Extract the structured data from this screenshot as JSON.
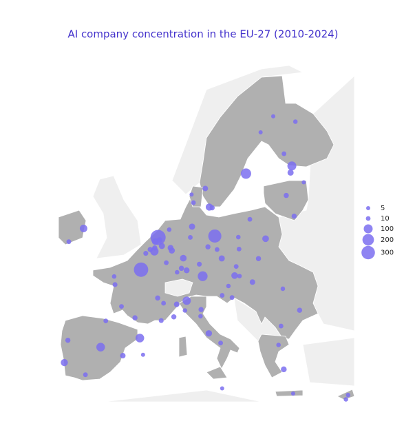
{
  "chart_data": {
    "type": "bubble-map",
    "title": "AI company concentration in the EU-27 (2010-2024)",
    "color": "#7b6ff0",
    "size_legend": [
      5,
      10,
      100,
      200,
      300
    ],
    "points": [
      {
        "lon": 4.9,
        "lat": 52.37,
        "value": 400
      },
      {
        "lon": 2.35,
        "lat": 48.85,
        "value": 350
      },
      {
        "lon": 13.4,
        "lat": 52.52,
        "value": 280
      },
      {
        "lon": 18.07,
        "lat": 59.33,
        "value": 150
      },
      {
        "lon": 11.58,
        "lat": 48.14,
        "value": 130
      },
      {
        "lon": 24.94,
        "lat": 60.17,
        "value": 100
      },
      {
        "lon": -3.7,
        "lat": 40.4,
        "value": 90
      },
      {
        "lon": 2.17,
        "lat": 41.39,
        "value": 90
      },
      {
        "lon": -9.14,
        "lat": 38.72,
        "value": 50
      },
      {
        "lon": 9.19,
        "lat": 45.46,
        "value": 80
      },
      {
        "lon": -6.26,
        "lat": 53.35,
        "value": 60
      },
      {
        "lon": 12.57,
        "lat": 55.68,
        "value": 50
      },
      {
        "lon": 4.35,
        "lat": 50.85,
        "value": 80
      },
      {
        "lon": 21.01,
        "lat": 52.23,
        "value": 40
      },
      {
        "lon": 14.44,
        "lat": 50.08,
        "value": 30
      },
      {
        "lon": 16.37,
        "lat": 48.21,
        "value": 40
      },
      {
        "lon": 24.75,
        "lat": 59.44,
        "value": 30
      },
      {
        "lon": 24.1,
        "lat": 56.95,
        "value": 15
      },
      {
        "lon": 25.28,
        "lat": 54.69,
        "value": 15
      },
      {
        "lon": 19.04,
        "lat": 47.5,
        "value": 20
      },
      {
        "lon": 26.1,
        "lat": 44.43,
        "value": 15
      },
      {
        "lon": 23.32,
        "lat": 42.7,
        "value": 10
      },
      {
        "lon": 23.73,
        "lat": 37.98,
        "value": 25
      },
      {
        "lon": 12.5,
        "lat": 41.9,
        "value": 35
      },
      {
        "lon": 9.99,
        "lat": 53.55,
        "value": 30
      },
      {
        "lon": 8.68,
        "lat": 50.11,
        "value": 40
      },
      {
        "lon": 6.96,
        "lat": 50.94,
        "value": 30
      },
      {
        "lon": 9.18,
        "lat": 48.78,
        "value": 25
      },
      {
        "lon": 4.84,
        "lat": 45.76,
        "value": 15
      },
      {
        "lon": 1.44,
        "lat": 43.6,
        "value": 15
      },
      {
        "lon": 5.37,
        "lat": 43.3,
        "value": 12
      },
      {
        "lon": 7.26,
        "lat": 43.7,
        "value": 15
      },
      {
        "lon": 4.48,
        "lat": 51.92,
        "value": 40
      },
      {
        "lon": 5.47,
        "lat": 51.44,
        "value": 30
      },
      {
        "lon": 6.13,
        "lat": 49.61,
        "value": 10
      },
      {
        "lon": 7.69,
        "lat": 45.07,
        "value": 20
      },
      {
        "lon": 11.34,
        "lat": 44.5,
        "value": 15
      },
      {
        "lon": 14.27,
        "lat": 40.85,
        "value": 10
      },
      {
        "lon": -0.38,
        "lat": 39.47,
        "value": 20
      },
      {
        "lon": -5.98,
        "lat": 37.39,
        "value": 10
      },
      {
        "lon": -8.61,
        "lat": 41.15,
        "value": 15
      },
      {
        "lon": 11.97,
        "lat": 57.71,
        "value": 20
      },
      {
        "lon": 13.0,
        "lat": 55.6,
        "value": 15
      },
      {
        "lon": 10.2,
        "lat": 56.16,
        "value": 10
      },
      {
        "lon": 23.76,
        "lat": 61.5,
        "value": 10
      },
      {
        "lon": 25.47,
        "lat": 65.0,
        "value": 8
      },
      {
        "lon": 19.94,
        "lat": 50.06,
        "value": 15
      },
      {
        "lon": 17.03,
        "lat": 51.1,
        "value": 10
      },
      {
        "lon": 14.5,
        "lat": 46.05,
        "value": 10
      },
      {
        "lon": 15.98,
        "lat": 45.81,
        "value": 10
      },
      {
        "lon": 17.1,
        "lat": 48.15,
        "value": 8
      },
      {
        "lon": -8.47,
        "lat": 51.9,
        "value": 10
      },
      {
        "lon": 33.04,
        "lat": 34.7,
        "value": 8
      },
      {
        "lon": 33.36,
        "lat": 35.17,
        "value": 8
      },
      {
        "lon": 14.5,
        "lat": 35.9,
        "value": 5
      },
      {
        "lon": 22.94,
        "lat": 40.64,
        "value": 8
      },
      {
        "lon": 26.72,
        "lat": 58.38,
        "value": 5
      },
      {
        "lon": 23.59,
        "lat": 46.77,
        "value": 8
      },
      {
        "lon": 2.65,
        "lat": 39.57,
        "value": 5
      },
      {
        "lon": 9.73,
        "lat": 52.37,
        "value": 10
      },
      {
        "lon": 6.77,
        "lat": 51.23,
        "value": 25
      },
      {
        "lon": 12.37,
        "lat": 51.34,
        "value": 15
      },
      {
        "lon": 13.74,
        "lat": 51.05,
        "value": 10
      },
      {
        "lon": 11.08,
        "lat": 49.45,
        "value": 12
      },
      {
        "lon": 8.4,
        "lat": 49.0,
        "value": 15
      },
      {
        "lon": 5.72,
        "lat": 45.19,
        "value": 10
      },
      {
        "lon": -1.55,
        "lat": 47.22,
        "value": 12
      },
      {
        "lon": -0.58,
        "lat": 44.84,
        "value": 10
      },
      {
        "lon": 3.06,
        "lat": 50.63,
        "value": 12
      },
      {
        "lon": -1.68,
        "lat": 48.11,
        "value": 8
      },
      {
        "lon": 7.75,
        "lat": 48.57,
        "value": 8
      },
      {
        "lon": -2.93,
        "lat": 43.26,
        "value": 10
      },
      {
        "lon": 3.72,
        "lat": 51.05,
        "value": 15
      },
      {
        "lon": 4.4,
        "lat": 51.22,
        "value": 15
      },
      {
        "lon": 5.12,
        "lat": 52.09,
        "value": 20
      },
      {
        "lon": 6.57,
        "lat": 53.22,
        "value": 8
      },
      {
        "lon": 15.44,
        "lat": 47.07,
        "value": 8
      },
      {
        "lon": 11.26,
        "lat": 43.77,
        "value": 8
      },
      {
        "lon": 8.93,
        "lat": 44.4,
        "value": 8
      },
      {
        "lon": 16.6,
        "lat": 49.2,
        "value": 10
      },
      {
        "lon": 16.92,
        "lat": 52.4,
        "value": 8
      },
      {
        "lon": 18.65,
        "lat": 54.35,
        "value": 10
      },
      {
        "lon": 9.92,
        "lat": 57.05,
        "value": 5
      },
      {
        "lon": 20.26,
        "lat": 63.83,
        "value": 5
      },
      {
        "lon": 22.15,
        "lat": 65.58,
        "value": 5
      },
      {
        "lon": 25.13,
        "lat": 35.34,
        "value": 5
      }
    ]
  }
}
